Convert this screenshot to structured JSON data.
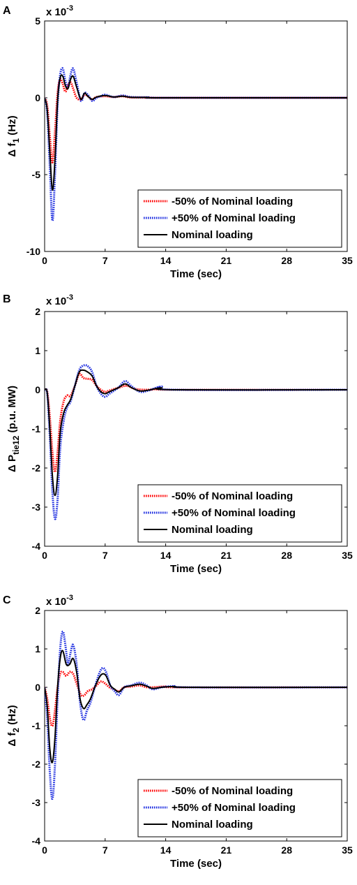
{
  "chart_data": [
    {
      "type": "line",
      "panel_label": "A",
      "multiplier": "x 10",
      "multiplier_exp": "-3",
      "ylabel": "Δ f",
      "ylabel_sub": "1",
      "ylabel_unit": " (Hz)",
      "xlabel": "Time (sec)",
      "xlim": [
        0,
        35
      ],
      "ylim": [
        -10,
        5
      ],
      "xticks": [
        0,
        7,
        14,
        21,
        28,
        35
      ],
      "yticks": [
        5,
        0,
        -5,
        -10
      ],
      "legend_position": "bottom-right",
      "series": [
        {
          "name": "-50% of Nominal loading",
          "color": "#ff0000",
          "style": "dotted",
          "points": [
            [
              0,
              0
            ],
            [
              0.3,
              -0.5
            ],
            [
              0.6,
              -2.5
            ],
            [
              0.9,
              -4.2
            ],
            [
              1.2,
              -2.2
            ],
            [
              1.5,
              0.3
            ],
            [
              1.8,
              1.2
            ],
            [
              2.1,
              0.9
            ],
            [
              2.4,
              0.4
            ],
            [
              2.7,
              0.8
            ],
            [
              3.0,
              1.0
            ],
            [
              3.3,
              0.6
            ],
            [
              3.7,
              0.0
            ],
            [
              4.2,
              -0.1
            ],
            [
              4.6,
              0.2
            ],
            [
              5.0,
              0.1
            ],
            [
              5.5,
              -0.1
            ],
            [
              6.0,
              0.05
            ],
            [
              7.0,
              0.1
            ],
            [
              8.0,
              0.05
            ],
            [
              9.0,
              0.1
            ],
            [
              10.0,
              0.02
            ],
            [
              12,
              0.02
            ],
            [
              14,
              0
            ],
            [
              35,
              0
            ]
          ]
        },
        {
          "name": "+50% of Nominal loading",
          "color": "#1f2fe0",
          "style": "dotted",
          "points": [
            [
              0,
              0
            ],
            [
              0.3,
              -1.0
            ],
            [
              0.6,
              -4.5
            ],
            [
              0.9,
              -8.0
            ],
            [
              1.2,
              -5.0
            ],
            [
              1.5,
              -0.5
            ],
            [
              1.8,
              1.5
            ],
            [
              2.1,
              1.9
            ],
            [
              2.4,
              1.1
            ],
            [
              2.7,
              0.7
            ],
            [
              3.0,
              1.5
            ],
            [
              3.3,
              1.9
            ],
            [
              3.7,
              1.0
            ],
            [
              4.2,
              -0.2
            ],
            [
              4.6,
              0.3
            ],
            [
              5.0,
              0.2
            ],
            [
              5.5,
              -0.2
            ],
            [
              6.0,
              0.0
            ],
            [
              6.5,
              0.1
            ],
            [
              7.0,
              0.2
            ],
            [
              8.0,
              0.05
            ],
            [
              9.0,
              0.15
            ],
            [
              10.0,
              0.05
            ],
            [
              12,
              0.03
            ],
            [
              14,
              0
            ],
            [
              35,
              0
            ]
          ]
        },
        {
          "name": "Nominal loading",
          "color": "#000000",
          "style": "solid",
          "points": [
            [
              0,
              0
            ],
            [
              0.3,
              -0.8
            ],
            [
              0.6,
              -3.5
            ],
            [
              0.9,
              -6.0
            ],
            [
              1.2,
              -4.0
            ],
            [
              1.5,
              -0.2
            ],
            [
              1.8,
              1.3
            ],
            [
              2.1,
              1.4
            ],
            [
              2.4,
              0.8
            ],
            [
              2.7,
              0.6
            ],
            [
              3.0,
              1.2
            ],
            [
              3.3,
              1.4
            ],
            [
              3.7,
              0.7
            ],
            [
              4.2,
              -0.1
            ],
            [
              4.6,
              0.3
            ],
            [
              5.0,
              0.1
            ],
            [
              5.5,
              -0.1
            ],
            [
              6.0,
              0.05
            ],
            [
              7.0,
              0.15
            ],
            [
              8.0,
              0.05
            ],
            [
              9.0,
              0.1
            ],
            [
              10.0,
              0.03
            ],
            [
              12,
              0.02
            ],
            [
              14,
              0
            ],
            [
              35,
              0
            ]
          ]
        }
      ]
    },
    {
      "type": "line",
      "panel_label": "B",
      "multiplier": "x 10",
      "multiplier_exp": "-3",
      "ylabel": "Δ P",
      "ylabel_sub": "tie12",
      "ylabel_unit": " (p.u. MW)",
      "xlabel": "Time (sec)",
      "xlim": [
        0,
        35
      ],
      "ylim": [
        -4,
        2
      ],
      "xticks": [
        0,
        7,
        14,
        21,
        28,
        35
      ],
      "yticks": [
        2,
        1,
        0,
        -1,
        -2,
        -3,
        -4
      ],
      "legend_position": "bottom-right",
      "series": [
        {
          "name": "-50% of Nominal loading",
          "color": "#ff0000",
          "style": "dotted",
          "points": [
            [
              0,
              0
            ],
            [
              0.3,
              -0.05
            ],
            [
              0.6,
              -0.7
            ],
            [
              0.9,
              -1.6
            ],
            [
              1.2,
              -2.1
            ],
            [
              1.5,
              -1.6
            ],
            [
              1.8,
              -0.8
            ],
            [
              2.2,
              -0.3
            ],
            [
              2.6,
              -0.15
            ],
            [
              3.0,
              -0.15
            ],
            [
              3.5,
              0.1
            ],
            [
              4.0,
              0.4
            ],
            [
              4.5,
              0.3
            ],
            [
              5.0,
              0.28
            ],
            [
              5.5,
              0.25
            ],
            [
              6.0,
              0.1
            ],
            [
              6.5,
              0.0
            ],
            [
              7.0,
              -0.05
            ],
            [
              7.5,
              -0.02
            ],
            [
              8.5,
              0.05
            ],
            [
              9.5,
              0.1
            ],
            [
              10.5,
              0.02
            ],
            [
              12,
              0.0
            ],
            [
              13.5,
              0.03
            ],
            [
              15,
              0.0
            ],
            [
              35,
              0
            ]
          ]
        },
        {
          "name": "+50% of Nominal loading",
          "color": "#1f2fe0",
          "style": "dotted",
          "points": [
            [
              0,
              0
            ],
            [
              0.3,
              -0.1
            ],
            [
              0.6,
              -1.2
            ],
            [
              0.9,
              -2.6
            ],
            [
              1.2,
              -3.3
            ],
            [
              1.5,
              -2.8
            ],
            [
              1.8,
              -1.5
            ],
            [
              2.2,
              -0.8
            ],
            [
              2.6,
              -0.45
            ],
            [
              3.0,
              -0.3
            ],
            [
              3.5,
              0.1
            ],
            [
              4.0,
              0.5
            ],
            [
              4.5,
              0.62
            ],
            [
              5.0,
              0.6
            ],
            [
              5.5,
              0.45
            ],
            [
              6.0,
              0.1
            ],
            [
              6.5,
              -0.1
            ],
            [
              7.0,
              -0.18
            ],
            [
              7.5,
              -0.1
            ],
            [
              8.5,
              0.05
            ],
            [
              9.3,
              0.22
            ],
            [
              10.0,
              0.1
            ],
            [
              11.0,
              -0.05
            ],
            [
              12,
              -0.02
            ],
            [
              13.5,
              0.08
            ],
            [
              15,
              0.0
            ],
            [
              35,
              0
            ]
          ]
        },
        {
          "name": "Nominal loading",
          "color": "#000000",
          "style": "solid",
          "points": [
            [
              0,
              0
            ],
            [
              0.3,
              -0.08
            ],
            [
              0.6,
              -1.0
            ],
            [
              0.9,
              -2.2
            ],
            [
              1.2,
              -2.7
            ],
            [
              1.5,
              -2.2
            ],
            [
              1.8,
              -1.1
            ],
            [
              2.2,
              -0.6
            ],
            [
              2.6,
              -0.4
            ],
            [
              3.0,
              -0.25
            ],
            [
              3.5,
              0.1
            ],
            [
              4.0,
              0.45
            ],
            [
              4.5,
              0.5
            ],
            [
              5.0,
              0.45
            ],
            [
              5.5,
              0.35
            ],
            [
              6.0,
              0.1
            ],
            [
              6.5,
              -0.05
            ],
            [
              7.0,
              -0.1
            ],
            [
              7.5,
              -0.05
            ],
            [
              8.5,
              0.05
            ],
            [
              9.3,
              0.15
            ],
            [
              10.0,
              0.06
            ],
            [
              11.0,
              -0.03
            ],
            [
              12,
              -0.01
            ],
            [
              13.5,
              0.05
            ],
            [
              15,
              0.0
            ],
            [
              35,
              0
            ]
          ]
        }
      ]
    },
    {
      "type": "line",
      "panel_label": "C",
      "multiplier": "x 10",
      "multiplier_exp": "-3",
      "ylabel": "Δ f",
      "ylabel_sub": "2",
      "ylabel_unit": " (Hz)",
      "xlabel": "Time (sec)",
      "xlim": [
        0,
        35
      ],
      "ylim": [
        -4,
        2
      ],
      "xticks": [
        0,
        7,
        14,
        21,
        28,
        35
      ],
      "yticks": [
        2,
        1,
        0,
        -1,
        -2,
        -3,
        -4
      ],
      "legend_position": "bottom-right",
      "series": [
        {
          "name": "-50% of Nominal loading",
          "color": "#ff0000",
          "style": "dotted",
          "points": [
            [
              0,
              0
            ],
            [
              0.3,
              -0.3
            ],
            [
              0.6,
              -0.8
            ],
            [
              0.9,
              -1.0
            ],
            [
              1.2,
              -0.6
            ],
            [
              1.5,
              0.0
            ],
            [
              1.8,
              0.35
            ],
            [
              2.1,
              0.4
            ],
            [
              2.5,
              0.3
            ],
            [
              2.9,
              0.4
            ],
            [
              3.3,
              0.35
            ],
            [
              3.7,
              0.1
            ],
            [
              4.2,
              -0.2
            ],
            [
              4.6,
              -0.2
            ],
            [
              5.0,
              -0.1
            ],
            [
              5.5,
              -0.05
            ],
            [
              6.0,
              0.05
            ],
            [
              6.5,
              0.15
            ],
            [
              7.0,
              0.1
            ],
            [
              7.5,
              0.0
            ],
            [
              8.0,
              -0.05
            ],
            [
              8.6,
              -0.1
            ],
            [
              9.2,
              0.0
            ],
            [
              10.0,
              0.02
            ],
            [
              11.0,
              0.05
            ],
            [
              12,
              0.0
            ],
            [
              14,
              0.02
            ],
            [
              16,
              0.0
            ],
            [
              35,
              0
            ]
          ]
        },
        {
          "name": "+50% of Nominal loading",
          "color": "#1f2fe0",
          "style": "dotted",
          "points": [
            [
              0,
              0
            ],
            [
              0.3,
              -0.8
            ],
            [
              0.6,
              -2.2
            ],
            [
              0.9,
              -2.9
            ],
            [
              1.2,
              -2.0
            ],
            [
              1.5,
              -0.3
            ],
            [
              1.8,
              1.0
            ],
            [
              2.1,
              1.45
            ],
            [
              2.4,
              1.1
            ],
            [
              2.7,
              0.6
            ],
            [
              3.0,
              0.9
            ],
            [
              3.3,
              1.1
            ],
            [
              3.7,
              0.6
            ],
            [
              4.1,
              -0.4
            ],
            [
              4.5,
              -0.85
            ],
            [
              4.9,
              -0.6
            ],
            [
              5.3,
              -0.4
            ],
            [
              5.8,
              0.0
            ],
            [
              6.3,
              0.35
            ],
            [
              6.7,
              0.5
            ],
            [
              7.1,
              0.4
            ],
            [
              7.6,
              0.05
            ],
            [
              8.1,
              -0.1
            ],
            [
              8.6,
              -0.2
            ],
            [
              9.2,
              0.0
            ],
            [
              10,
              0.05
            ],
            [
              11,
              0.12
            ],
            [
              11.8,
              0.05
            ],
            [
              12.5,
              -0.05
            ],
            [
              13.5,
              0.0
            ],
            [
              15,
              0.03
            ],
            [
              17,
              0.0
            ],
            [
              35,
              0
            ]
          ]
        },
        {
          "name": "Nominal loading",
          "color": "#000000",
          "style": "solid",
          "points": [
            [
              0,
              0
            ],
            [
              0.3,
              -0.5
            ],
            [
              0.6,
              -1.6
            ],
            [
              0.9,
              -1.95
            ],
            [
              1.2,
              -1.3
            ],
            [
              1.5,
              0.0
            ],
            [
              1.8,
              0.75
            ],
            [
              2.1,
              0.95
            ],
            [
              2.5,
              0.6
            ],
            [
              2.9,
              0.6
            ],
            [
              3.3,
              0.75
            ],
            [
              3.7,
              0.4
            ],
            [
              4.1,
              -0.3
            ],
            [
              4.5,
              -0.55
            ],
            [
              4.9,
              -0.45
            ],
            [
              5.3,
              -0.3
            ],
            [
              5.8,
              0.0
            ],
            [
              6.3,
              0.25
            ],
            [
              6.7,
              0.35
            ],
            [
              7.1,
              0.3
            ],
            [
              7.6,
              0.05
            ],
            [
              8.1,
              -0.05
            ],
            [
              8.6,
              -0.12
            ],
            [
              9.2,
              0.0
            ],
            [
              10,
              0.04
            ],
            [
              11,
              0.08
            ],
            [
              11.8,
              0.03
            ],
            [
              12.5,
              -0.03
            ],
            [
              13.5,
              0.0
            ],
            [
              15,
              0.02
            ],
            [
              17,
              0.0
            ],
            [
              35,
              0
            ]
          ]
        }
      ]
    }
  ]
}
